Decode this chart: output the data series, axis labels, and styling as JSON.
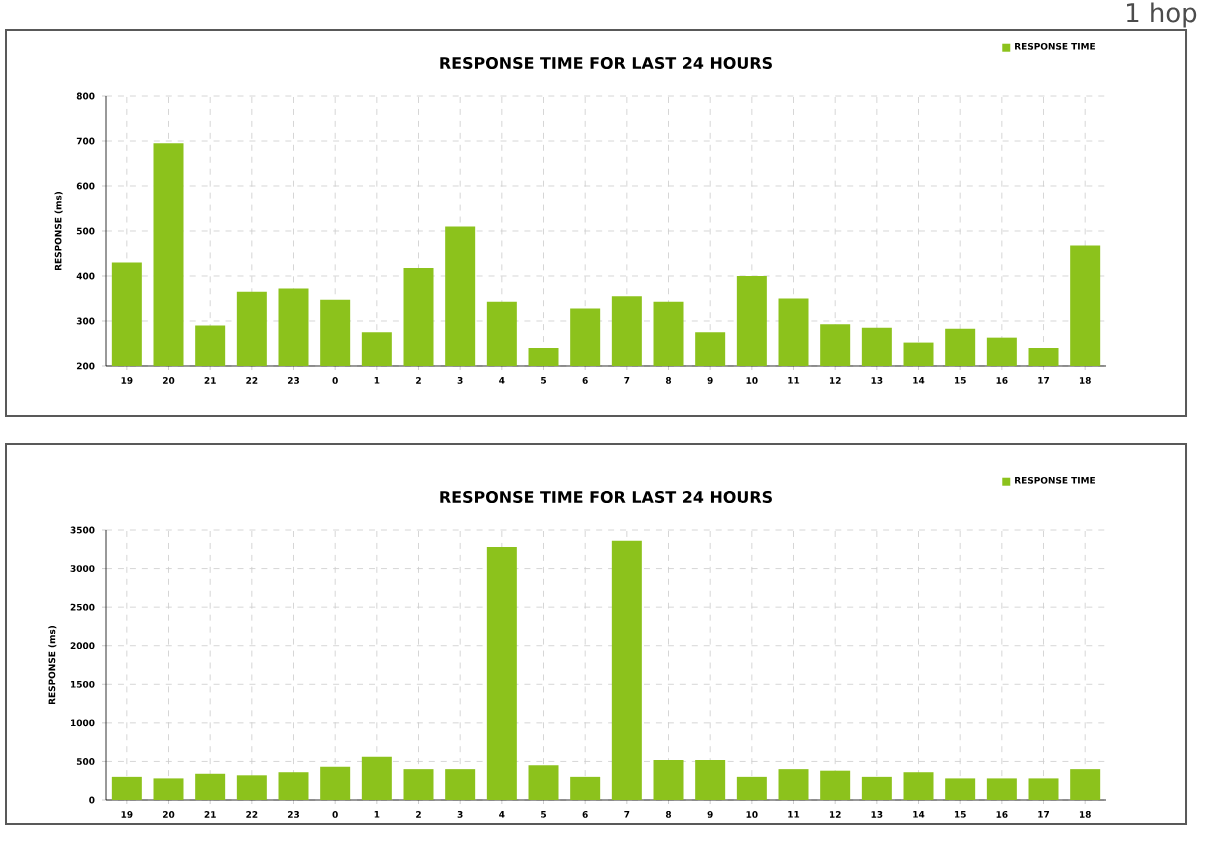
{
  "chart_data": [
    {
      "type": "bar",
      "title": "RESPONSE TIME FOR LAST 24 HOURS",
      "ylabel": "RESPONSE (ms)",
      "annotations": [
        "1 hop"
      ],
      "categories": [
        "19",
        "20",
        "21",
        "22",
        "23",
        "0",
        "1",
        "2",
        "3",
        "4",
        "5",
        "6",
        "7",
        "8",
        "9",
        "10",
        "11",
        "12",
        "13",
        "14",
        "15",
        "16",
        "17",
        "18"
      ],
      "series": [
        {
          "name": "RESPONSE TIME",
          "color": "#8cc21c",
          "values": [
            430,
            695,
            290,
            365,
            372,
            347,
            275,
            418,
            510,
            343,
            240,
            328,
            355,
            343,
            275,
            400,
            350,
            293,
            285,
            252,
            283,
            263,
            240,
            468
          ]
        }
      ],
      "ylim": [
        200,
        800
      ],
      "yticks": [
        200,
        300,
        400,
        500,
        600,
        700,
        800
      ],
      "grid": true,
      "legend": "top right"
    },
    {
      "type": "bar",
      "title": "RESPONSE TIME FOR LAST 24 HOURS",
      "ylabel": "RESPONSE (ms)",
      "categories": [
        "19",
        "20",
        "21",
        "22",
        "23",
        "0",
        "1",
        "2",
        "3",
        "4",
        "5",
        "6",
        "7",
        "8",
        "9",
        "10",
        "11",
        "12",
        "13",
        "14",
        "15",
        "16",
        "17",
        "18"
      ],
      "series": [
        {
          "name": "RESPONSE TIME",
          "color": "#8cc21c",
          "values": [
            300,
            280,
            340,
            320,
            360,
            430,
            560,
            400,
            400,
            3280,
            450,
            300,
            3360,
            520,
            520,
            300,
            400,
            380,
            300,
            360,
            280,
            280,
            280,
            400
          ]
        }
      ],
      "ylim": [
        0,
        3500
      ],
      "yticks": [
        0,
        500,
        1000,
        1500,
        2000,
        2500,
        3000,
        3500
      ],
      "grid": true,
      "legend": "top right"
    }
  ]
}
